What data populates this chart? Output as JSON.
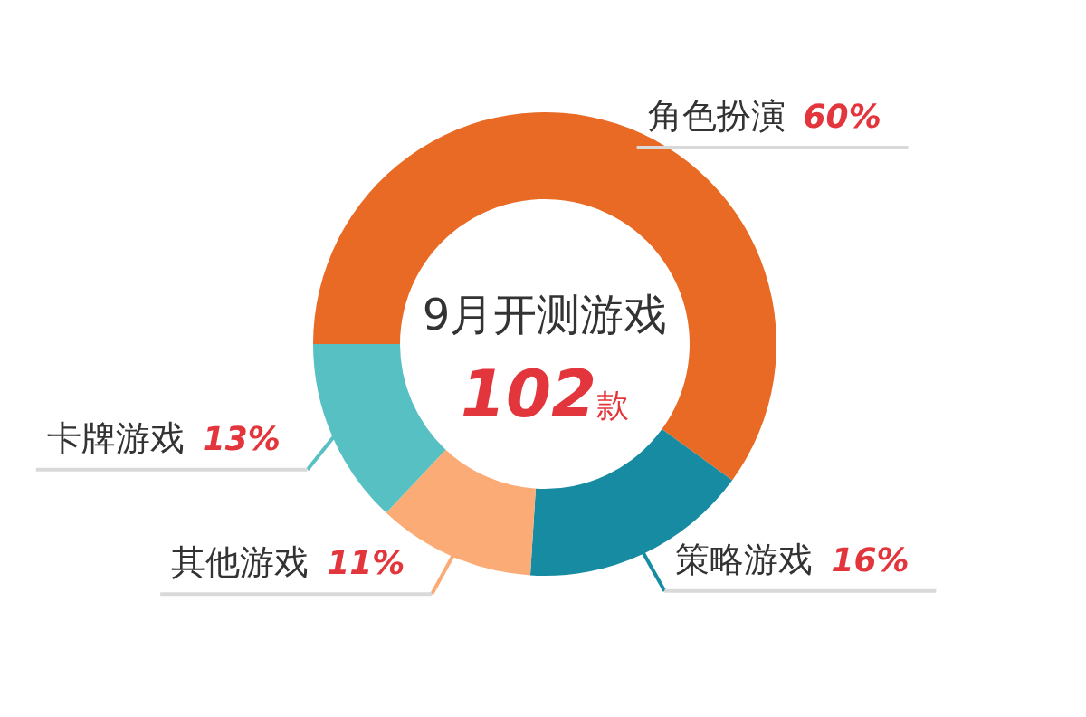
{
  "chart_data": {
    "type": "donut",
    "title": "9月开测游戏",
    "subtitle": "102款",
    "categories": [
      "角色扮演",
      "策略游戏",
      "其他游戏",
      "卡牌游戏"
    ],
    "values": [
      60,
      16,
      11,
      13
    ],
    "colors": [
      "#e96a25",
      "#168ba2",
      "#fbab76",
      "#57c0c3"
    ],
    "value_labels": [
      "60%",
      "16%",
      "11%",
      "13%"
    ],
    "legend": false
  }
}
